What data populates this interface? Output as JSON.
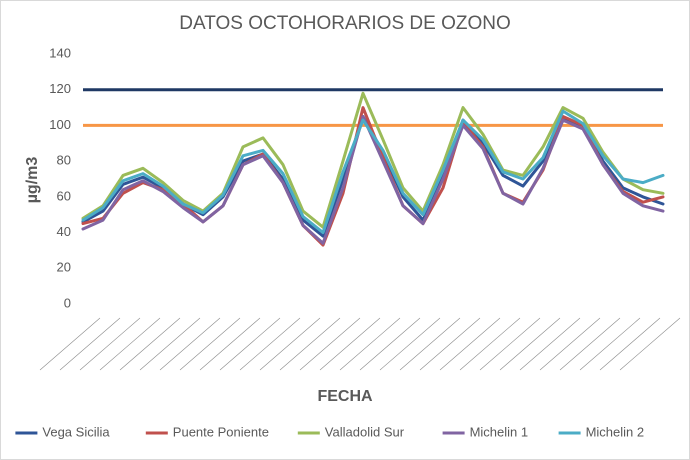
{
  "chart_data": {
    "type": "line",
    "title": "DATOS OCTOHORARIOS DE OZONO",
    "x_label": "FECHA",
    "y_label": "µg/m3",
    "ylim": [
      0,
      140
    ],
    "yticks": [
      0,
      20,
      40,
      60,
      80,
      100,
      120,
      140
    ],
    "grid": false,
    "legend": "bottom",
    "reference_lines": [
      {
        "value": 120,
        "color": "#1f3864"
      },
      {
        "value": 100,
        "color": "#f79646"
      }
    ],
    "series": [
      {
        "name": "Vega Sicilia",
        "color": "#2f5597",
        "values": [
          46,
          52,
          67,
          71,
          65,
          56,
          50,
          60,
          80,
          84,
          70,
          47,
          38,
          70,
          105,
          85,
          60,
          47,
          72,
          103,
          90,
          72,
          66,
          80,
          104,
          100,
          80,
          65,
          60,
          56
        ]
      },
      {
        "name": "Puente Poniente",
        "color": "#c0504d",
        "values": [
          45,
          48,
          62,
          68,
          64,
          56,
          46,
          55,
          78,
          84,
          68,
          44,
          33,
          62,
          110,
          82,
          55,
          45,
          65,
          102,
          88,
          62,
          57,
          75,
          105,
          100,
          78,
          63,
          57,
          60
        ]
      },
      {
        "name": "Valladolid Sur",
        "color": "#9bbb59",
        "values": [
          48,
          55,
          72,
          76,
          68,
          58,
          52,
          62,
          88,
          93,
          78,
          52,
          43,
          80,
          118,
          92,
          65,
          52,
          78,
          110,
          95,
          75,
          72,
          88,
          110,
          104,
          85,
          70,
          64,
          62
        ]
      },
      {
        "name": "Michelin 1",
        "color": "#8064a2",
        "values": [
          42,
          47,
          64,
          69,
          63,
          54,
          46,
          55,
          78,
          83,
          68,
          44,
          34,
          65,
          105,
          80,
          55,
          45,
          70,
          100,
          87,
          62,
          56,
          76,
          103,
          98,
          78,
          62,
          55,
          52
        ]
      },
      {
        "name": "Michelin 2",
        "color": "#4bacc6",
        "values": [
          47,
          54,
          69,
          73,
          66,
          56,
          51,
          61,
          83,
          86,
          73,
          49,
          40,
          74,
          103,
          86,
          62,
          50,
          75,
          103,
          92,
          74,
          70,
          82,
          108,
          101,
          83,
          70,
          68,
          72
        ]
      }
    ]
  }
}
